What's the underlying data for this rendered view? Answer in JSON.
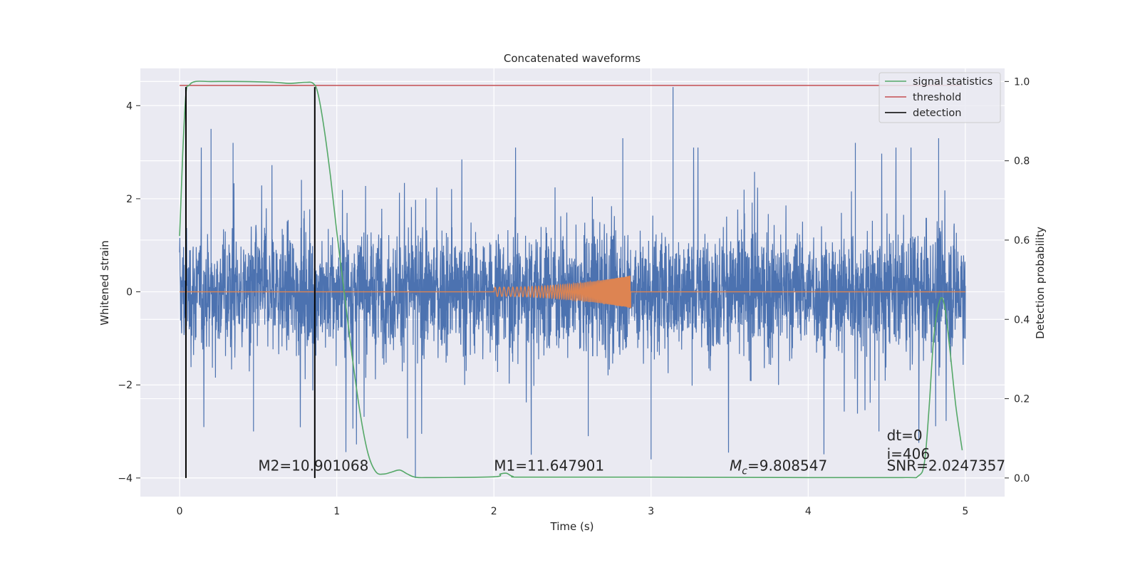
{
  "chart_data": {
    "type": "line",
    "title": "Concatenated waveforms",
    "xlabel": "Time (s)",
    "ylabel": "Whitened strain",
    "y2label": "Detection probability",
    "xlim": [
      -0.25,
      5.25
    ],
    "ylim": [
      -4.4,
      4.8
    ],
    "y2lim": [
      -0.047,
      1.033
    ],
    "x_ticks": [
      0,
      1,
      2,
      3,
      4,
      5
    ],
    "x_tick_labels": [
      "0",
      "1",
      "2",
      "3",
      "4",
      "5"
    ],
    "y_ticks": [
      -4,
      -2,
      0,
      2,
      4
    ],
    "y_tick_labels": [
      "−4",
      "−2",
      "0",
      "2",
      "4"
    ],
    "y2_ticks": [
      0,
      0.2,
      0.4,
      0.6,
      0.8,
      1.0
    ],
    "y2_tick_labels": [
      "0.0",
      "0.2",
      "0.4",
      "0.6",
      "0.8",
      "1.0"
    ],
    "grid": true,
    "legend": {
      "position": "top-right",
      "entries": [
        {
          "label": "signal statistics",
          "color": "#55a868"
        },
        {
          "label": "threshold",
          "color": "#c44e52"
        },
        {
          "label": "detection",
          "color": "#000000"
        }
      ]
    },
    "series": [
      {
        "name": "whitened strain (noise)",
        "axis": "left",
        "color": "#4c72b0",
        "description_range": [
          0,
          5
        ],
        "envelope": {
          "typical_amplitude": 1.0,
          "max": 4.4,
          "min": -4.0
        },
        "spikes": [
          {
            "x": 3.14,
            "y": 4.4
          },
          {
            "x": 1.5,
            "y": -4.0
          },
          {
            "x": 3.0,
            "y": -3.6
          },
          {
            "x": 1.45,
            "y": -3.15
          },
          {
            "x": 2.6,
            "y": -3.1
          },
          {
            "x": 4.45,
            "y": -3.0
          },
          {
            "x": 0.47,
            "y": -3.0
          },
          {
            "x": 0.2,
            "y": 3.5
          },
          {
            "x": 0.34,
            "y": 3.2
          },
          {
            "x": 2.82,
            "y": 3.3
          },
          {
            "x": 4.3,
            "y": 3.2
          },
          {
            "x": 4.83,
            "y": 3.3
          }
        ]
      },
      {
        "name": "injected waveform",
        "axis": "left",
        "color": "#dd8452",
        "chirp": {
          "start": 2.0,
          "end": 2.87,
          "amp_start": 0.1,
          "amp_end": 0.35,
          "peak": {
            "x": 2.87,
            "y": -0.35
          }
        }
      },
      {
        "name": "signal statistics",
        "axis": "right",
        "color": "#55a868",
        "x": [
          0.0,
          0.02,
          0.04,
          0.06,
          0.1,
          0.2,
          0.4,
          0.6,
          0.7,
          0.8,
          0.85,
          0.88,
          0.92,
          0.96,
          1.0,
          1.05,
          1.1,
          1.15,
          1.2,
          1.25,
          1.3,
          1.35,
          1.4,
          1.45,
          1.5,
          1.6,
          2.0,
          2.04,
          2.08,
          2.12,
          2.2,
          3.0,
          4.0,
          4.6,
          4.7,
          4.74,
          4.77,
          4.8,
          4.84,
          4.87,
          4.9,
          4.94,
          4.98
        ],
        "y": [
          0.61,
          0.82,
          0.97,
          0.99,
          1.0,
          1.0,
          1.0,
          0.998,
          0.995,
          0.998,
          0.995,
          0.97,
          0.88,
          0.76,
          0.62,
          0.46,
          0.3,
          0.16,
          0.06,
          0.015,
          0.01,
          0.015,
          0.02,
          0.01,
          0.002,
          0.001,
          0.003,
          0.01,
          0.012,
          0.004,
          0.002,
          0.002,
          0.001,
          0.001,
          0.005,
          0.04,
          0.18,
          0.36,
          0.45,
          0.43,
          0.33,
          0.18,
          0.07
        ]
      },
      {
        "name": "threshold",
        "axis": "right",
        "color": "#c44e52",
        "x": [
          0,
          4.98
        ],
        "y": [
          0.99,
          0.99
        ]
      }
    ],
    "detections": [
      0.04,
      0.86
    ],
    "detections_range": [
      -4.0,
      4.4
    ],
    "annotations": [
      {
        "text": "M2=10.901068",
        "x": 0.5,
        "y": -3.75
      },
      {
        "text": "M1=11.647901",
        "x": 2.0,
        "y": -3.75
      },
      {
        "text": "=9.808547",
        "prefix_sym": "M",
        "prefix_sub": "c",
        "x": 3.5,
        "y": -3.75
      },
      {
        "text": "dt=0",
        "x": 4.5,
        "y": -3.1
      },
      {
        "text": "i=406",
        "x": 4.5,
        "y": -3.5
      },
      {
        "text": "SNR=2.0247357",
        "x": 4.5,
        "y": -3.75
      }
    ]
  }
}
